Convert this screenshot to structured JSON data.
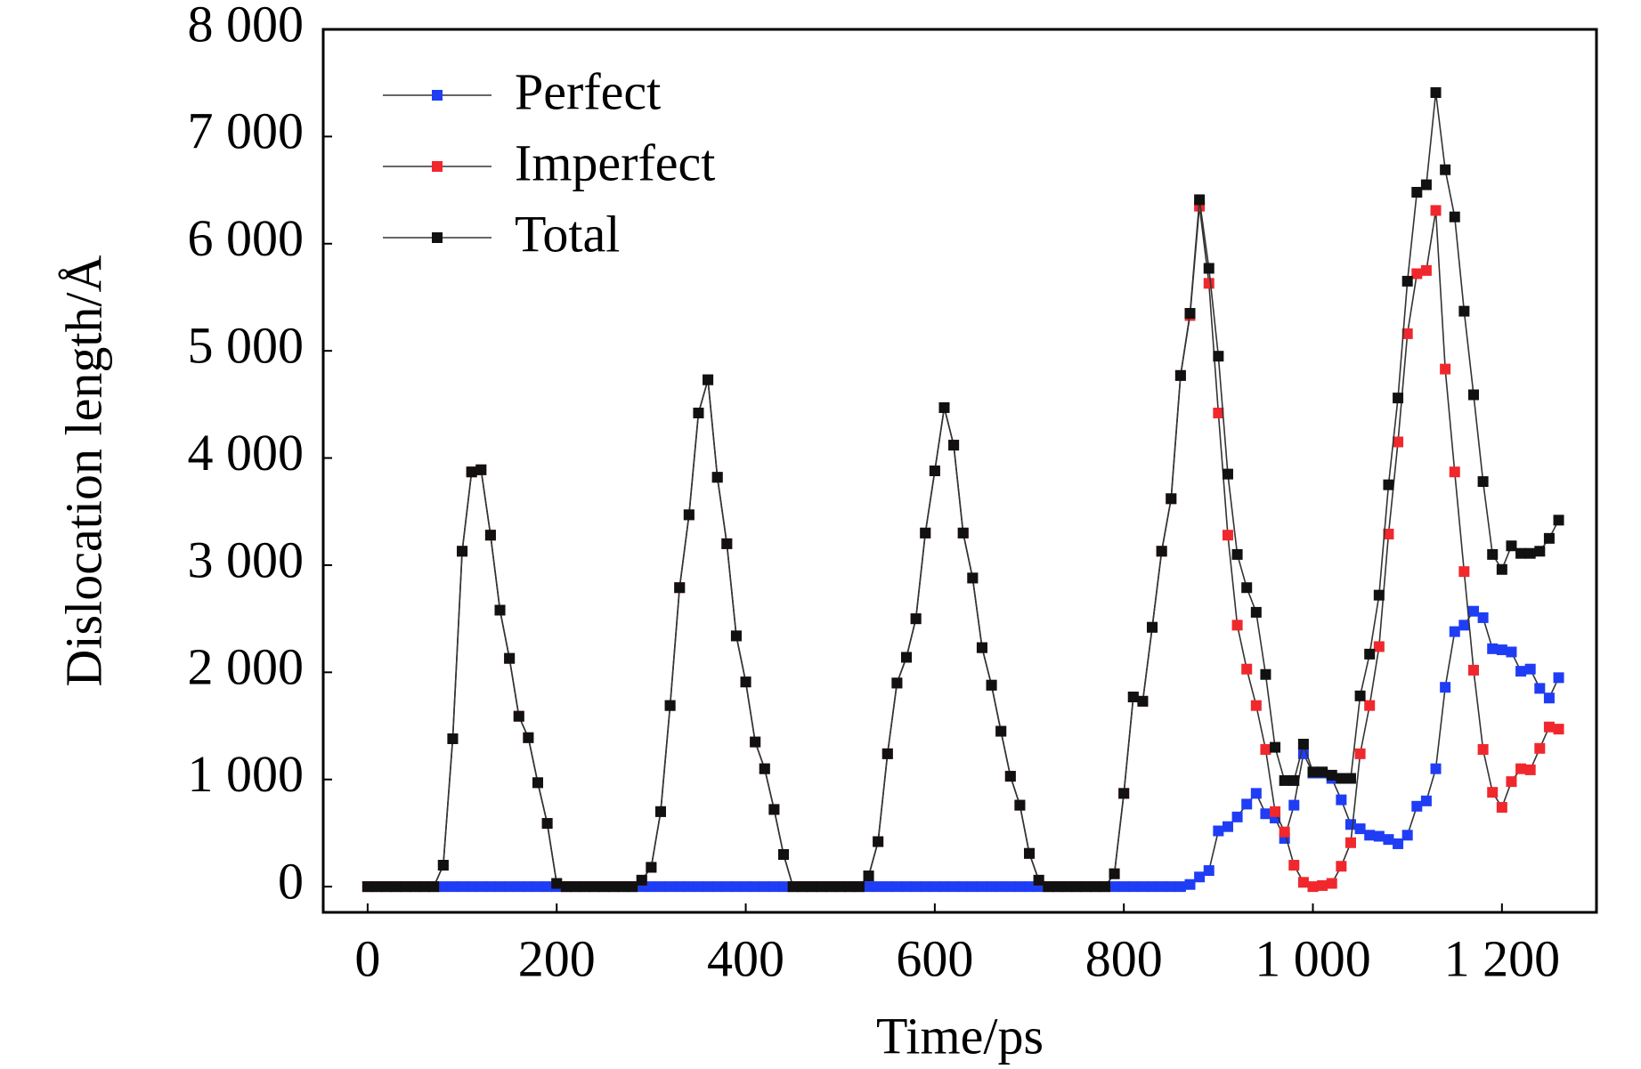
{
  "chart_data": {
    "type": "line",
    "xlabel": "Time/ps",
    "ylabel": "Dislocation length/Å",
    "xlim": [
      -47,
      1300
    ],
    "ylim": [
      -240,
      8000
    ],
    "xticks": [
      0,
      200,
      400,
      600,
      800,
      {
        "value": 1000,
        "label": "1 000"
      },
      {
        "value": 1200,
        "label": "1 200"
      }
    ],
    "yticks": [
      0,
      {
        "value": 1000,
        "label": "1 000"
      },
      {
        "value": 2000,
        "label": "2 000"
      },
      {
        "value": 3000,
        "label": "3 000"
      },
      {
        "value": 4000,
        "label": "4 000"
      },
      {
        "value": 5000,
        "label": "5 000"
      },
      {
        "value": 6000,
        "label": "6 000"
      },
      {
        "value": 7000,
        "label": "7 000"
      },
      {
        "value": 8000,
        "label": "8 000"
      }
    ],
    "legend": "upper left",
    "line_color": "#333333",
    "x": [
      0,
      10,
      20,
      30,
      40,
      50,
      60,
      70,
      80,
      90,
      100,
      110,
      120,
      130,
      140,
      150,
      160,
      170,
      180,
      190,
      200,
      210,
      220,
      230,
      240,
      250,
      260,
      270,
      280,
      290,
      300,
      310,
      320,
      330,
      340,
      350,
      360,
      370,
      380,
      390,
      400,
      410,
      420,
      430,
      440,
      450,
      460,
      470,
      480,
      490,
      500,
      510,
      520,
      530,
      540,
      550,
      560,
      570,
      580,
      590,
      600,
      610,
      620,
      630,
      640,
      650,
      660,
      670,
      680,
      690,
      700,
      710,
      720,
      730,
      740,
      750,
      760,
      770,
      780,
      790,
      800,
      810,
      820,
      830,
      840,
      850,
      860,
      870,
      880,
      890,
      900,
      910,
      920,
      930,
      940,
      950,
      960,
      970,
      980,
      990,
      1000,
      1010,
      1020,
      1030,
      1040,
      1050,
      1060,
      1070,
      1080,
      1090,
      1100,
      1110,
      1120,
      1130,
      1140,
      1150,
      1160,
      1170,
      1180,
      1190,
      1200,
      1210,
      1220,
      1230,
      1240,
      1250,
      1260
    ],
    "series": [
      {
        "name": "Perfect",
        "color": "#1f3df5",
        "values": [
          0,
          0,
          0,
          0,
          0,
          0,
          0,
          0,
          0,
          0,
          0,
          0,
          0,
          0,
          0,
          0,
          0,
          0,
          0,
          0,
          0,
          0,
          0,
          0,
          0,
          0,
          0,
          0,
          0,
          0,
          0,
          0,
          0,
          0,
          0,
          0,
          0,
          0,
          0,
          0,
          0,
          0,
          0,
          0,
          0,
          0,
          0,
          0,
          0,
          0,
          0,
          0,
          0,
          0,
          0,
          0,
          0,
          0,
          0,
          0,
          0,
          0,
          0,
          0,
          0,
          0,
          0,
          0,
          0,
          0,
          0,
          0,
          0,
          0,
          0,
          0,
          0,
          0,
          0,
          0,
          0,
          0,
          0,
          0,
          0,
          0,
          0,
          20,
          90,
          150,
          520,
          560,
          650,
          770,
          870,
          680,
          640,
          450,
          760,
          1240,
          1060,
          1060,
          1010,
          810,
          580,
          540,
          480,
          470,
          440,
          400,
          480,
          750,
          800,
          1100,
          1860,
          2380,
          2440,
          2570,
          2510,
          2220,
          2210,
          2190,
          2010,
          2030,
          1850,
          1760,
          1950
        ]
      },
      {
        "name": "Imperfect",
        "color": "#f0282d",
        "values": [
          0,
          0,
          0,
          0,
          0,
          0,
          0,
          0,
          200,
          1380,
          3130,
          3870,
          3890,
          3280,
          2580,
          2130,
          1590,
          1390,
          970,
          590,
          30,
          0,
          0,
          0,
          0,
          0,
          0,
          0,
          0,
          60,
          180,
          700,
          1690,
          2790,
          3470,
          4420,
          4730,
          3820,
          3200,
          2340,
          1910,
          1350,
          1100,
          720,
          300,
          0,
          0,
          0,
          0,
          0,
          0,
          0,
          0,
          100,
          420,
          1240,
          1900,
          2140,
          2500,
          3300,
          3880,
          4470,
          4120,
          3300,
          2880,
          2230,
          1880,
          1450,
          1030,
          760,
          310,
          60,
          0,
          0,
          0,
          0,
          0,
          0,
          0,
          120,
          870,
          1770,
          1730,
          2420,
          3130,
          3620,
          4770,
          5330,
          6350,
          5630,
          4420,
          3280,
          2440,
          2030,
          1690,
          1280,
          700,
          510,
          200,
          40,
          0,
          10,
          30,
          190,
          410,
          1240,
          1690,
          2240,
          3290,
          4150,
          5160,
          5720,
          5750,
          6310,
          4830,
          3870,
          2940,
          2020,
          1280,
          880,
          740,
          980,
          1100,
          1090,
          1290,
          1490,
          1470
        ]
      },
      {
        "name": "Total",
        "color": "#111111",
        "values": [
          0,
          0,
          0,
          0,
          0,
          0,
          0,
          0,
          200,
          1380,
          3130,
          3870,
          3890,
          3280,
          2580,
          2130,
          1590,
          1390,
          970,
          590,
          30,
          0,
          0,
          0,
          0,
          0,
          0,
          0,
          0,
          60,
          180,
          700,
          1690,
          2790,
          3470,
          4420,
          4730,
          3820,
          3200,
          2340,
          1910,
          1350,
          1100,
          720,
          300,
          0,
          0,
          0,
          0,
          0,
          0,
          0,
          0,
          100,
          420,
          1240,
          1900,
          2140,
          2500,
          3300,
          3880,
          4470,
          4120,
          3300,
          2880,
          2230,
          1880,
          1450,
          1030,
          760,
          310,
          60,
          0,
          0,
          0,
          0,
          0,
          0,
          0,
          120,
          870,
          1770,
          1730,
          2420,
          3130,
          3620,
          4770,
          5350,
          6410,
          5770,
          4950,
          3850,
          3100,
          2790,
          2560,
          1980,
          1300,
          990,
          990,
          1330,
          1070,
          1070,
          1040,
          1010,
          1010,
          1780,
          2170,
          2720,
          3750,
          4560,
          5650,
          6480,
          6550,
          7410,
          6690,
          6250,
          5370,
          4590,
          3780,
          3100,
          2960,
          3180,
          3110,
          3110,
          3130,
          3250,
          3420
        ]
      }
    ]
  }
}
